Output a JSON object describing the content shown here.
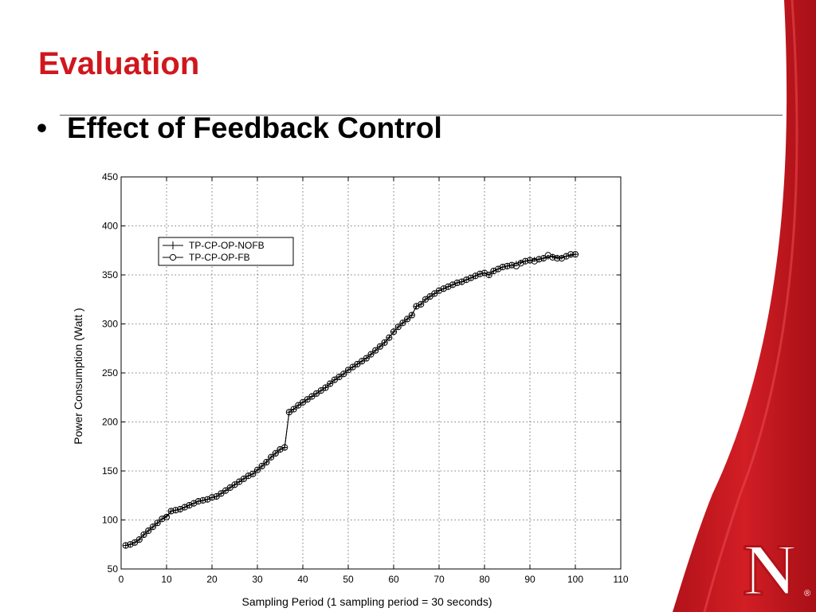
{
  "slide": {
    "title": "Evaluation",
    "bullet": "•",
    "bullet_text": "Effect of Feedback Control",
    "accent_color": "#d0171e",
    "logo_text": "N",
    "logo_mark": "®"
  },
  "chart_data": {
    "type": "line",
    "title": "",
    "xlabel": "Sampling Period (1 sampling period = 30 seconds)",
    "ylabel": "Power Consumption (Watt )",
    "xlim": [
      0,
      110
    ],
    "ylim": [
      50,
      450
    ],
    "xticks": [
      0,
      10,
      20,
      30,
      40,
      50,
      60,
      70,
      80,
      90,
      100,
      110
    ],
    "yticks": [
      50,
      100,
      150,
      200,
      250,
      300,
      350,
      400,
      450
    ],
    "grid": true,
    "legend_position": "top-left",
    "x": [
      1,
      2,
      3,
      4,
      5,
      6,
      7,
      8,
      9,
      10,
      11,
      12,
      13,
      14,
      15,
      16,
      17,
      18,
      19,
      20,
      21,
      22,
      23,
      24,
      25,
      26,
      27,
      28,
      29,
      30,
      31,
      32,
      33,
      34,
      35,
      36,
      37,
      38,
      39,
      40,
      41,
      42,
      43,
      44,
      45,
      46,
      47,
      48,
      49,
      50,
      51,
      52,
      53,
      54,
      55,
      56,
      57,
      58,
      59,
      60,
      61,
      62,
      63,
      64,
      65,
      66,
      67,
      68,
      69,
      70,
      71,
      72,
      73,
      74,
      75,
      76,
      77,
      78,
      79,
      80,
      81,
      82,
      83,
      84,
      85,
      86,
      87,
      88,
      89,
      90,
      91,
      92,
      93,
      94,
      95,
      96,
      97,
      98,
      99,
      100
    ],
    "series": [
      {
        "name": "TP-CP-OP-NOFB",
        "marker": "plus",
        "values": [
          74,
          75,
          77,
          80,
          85,
          89,
          93,
          97,
          101,
          104,
          109,
          110,
          111,
          113,
          115,
          117,
          119,
          120,
          121,
          123,
          124,
          127,
          130,
          133,
          136,
          139,
          142,
          145,
          147,
          151,
          155,
          159,
          164,
          168,
          172,
          174,
          210,
          213,
          217,
          220,
          223,
          226,
          229,
          232,
          235,
          239,
          243,
          246,
          249,
          253,
          256,
          259,
          262,
          265,
          269,
          273,
          277,
          281,
          286,
          292,
          297,
          301,
          305,
          309,
          318,
          320,
          325,
          328,
          331,
          334,
          336,
          338,
          340,
          342,
          343,
          345,
          347,
          349,
          351,
          352,
          350,
          354,
          356,
          358,
          359,
          360,
          362,
          363,
          364,
          365,
          366,
          366,
          367,
          368,
          369,
          368,
          368,
          369,
          370,
          371
        ]
      },
      {
        "name": "TP-CP-OP-FB",
        "marker": "circle",
        "values": [
          74,
          75,
          77,
          80,
          85,
          89,
          93,
          97,
          101,
          103,
          109,
          110,
          111,
          113,
          115,
          117,
          119,
          120,
          121,
          123,
          124,
          127,
          130,
          133,
          136,
          139,
          142,
          145,
          147,
          151,
          155,
          159,
          164,
          168,
          172,
          174,
          210,
          213,
          217,
          220,
          223,
          226,
          229,
          232,
          235,
          239,
          243,
          246,
          249,
          253,
          256,
          259,
          262,
          265,
          269,
          273,
          277,
          281,
          286,
          292,
          297,
          301,
          305,
          309,
          318,
          320,
          325,
          328,
          331,
          334,
          336,
          338,
          340,
          342,
          343,
          345,
          347,
          349,
          351,
          352,
          350,
          354,
          356,
          358,
          359,
          360,
          359,
          362,
          364,
          365,
          364,
          366,
          367,
          370,
          368,
          367,
          367,
          369,
          371,
          371
        ]
      }
    ]
  }
}
